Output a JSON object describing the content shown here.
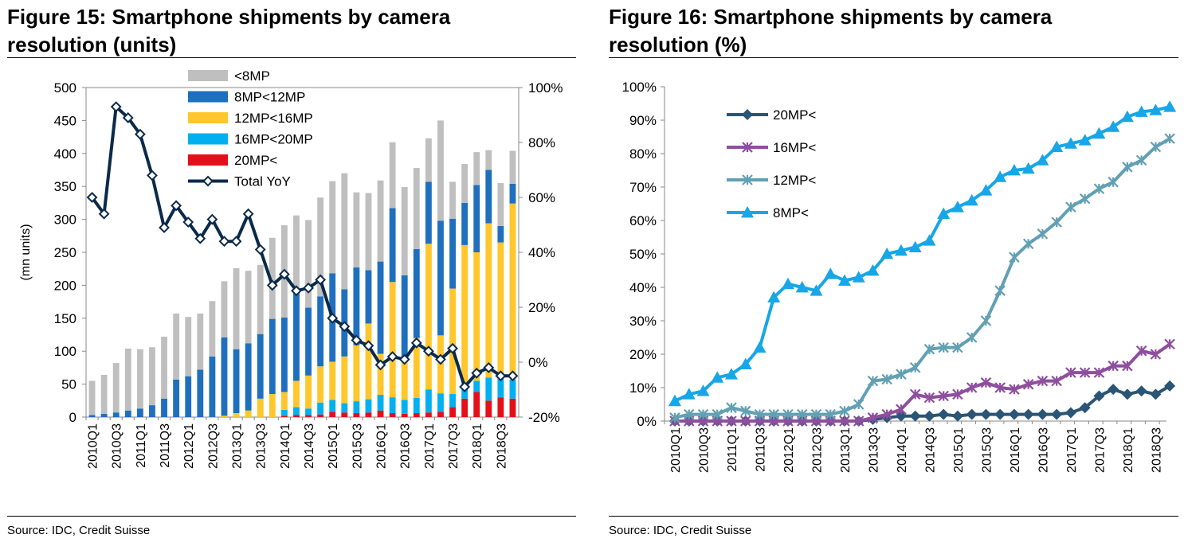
{
  "figures": [
    {
      "title_line1": "Figure 15: Smartphone shipments by camera",
      "title_line2": "resolution (units)",
      "source": "Source: IDC, Credit Suisse"
    },
    {
      "title_line1": "Figure 16: Smartphone shipments by camera",
      "title_line2": "resolution (%)",
      "source": "Source: IDC, Credit Suisse"
    }
  ],
  "colors": {
    "lt8": "#bfbfbf",
    "s8_12": "#1f6fbf",
    "s12_16": "#ffc72c",
    "s16_20": "#00b0f0",
    "gt20": "#e3101a",
    "yoy": "#0b2a4a",
    "c20": "#2b5575",
    "c16": "#8e4f9e",
    "c12": "#62a0b3",
    "c8": "#17a6e8"
  },
  "chart_data": [
    {
      "type": "bar",
      "stacked": true,
      "title": "Figure 15: Smartphone shipments by camera resolution (units)",
      "ylabel": "(mn units)",
      "ylim": [
        0,
        500
      ],
      "yticks": [
        "0",
        "50",
        "100",
        "150",
        "200",
        "250",
        "300",
        "350",
        "400",
        "450",
        "500"
      ],
      "y2lim": [
        -20,
        100
      ],
      "y2ticks": [
        "-20%",
        "0%",
        "20%",
        "40%",
        "60%",
        "80%",
        "100%"
      ],
      "categories": [
        "2010Q1",
        "2010Q2",
        "2010Q3",
        "2010Q4",
        "2011Q1",
        "2011Q2",
        "2011Q3",
        "2011Q4",
        "2012Q1",
        "2012Q2",
        "2012Q3",
        "2012Q4",
        "2013Q1",
        "2013Q2",
        "2013Q3",
        "2013Q4",
        "2014Q1",
        "2014Q2",
        "2014Q3",
        "2014Q4",
        "2015Q1",
        "2015Q2",
        "2015Q3",
        "2015Q4",
        "2016Q1",
        "2016Q2",
        "2016Q3",
        "2016Q4",
        "2017Q1",
        "2017Q2",
        "2017Q3",
        "2017Q4",
        "2018Q1",
        "2018Q2",
        "2018Q3",
        "2018Q4"
      ],
      "x_tick_labels": [
        "2010Q1",
        "2010Q3",
        "2011Q1",
        "2011Q3",
        "2012Q1",
        "2012Q3",
        "2013Q1",
        "2013Q3",
        "2014Q1",
        "2014Q3",
        "2015Q1",
        "2015Q3",
        "2016Q1",
        "2016Q3",
        "2017Q1",
        "2017Q3",
        "2018Q1",
        "2018Q3"
      ],
      "legend_position": "top-center",
      "series": [
        {
          "name": "20MP<",
          "values": [
            0,
            0,
            0,
            0,
            0,
            0,
            0,
            0,
            0,
            0,
            0,
            0,
            0,
            0,
            0,
            0,
            2,
            3,
            3,
            4,
            8,
            7,
            6,
            7,
            10,
            6,
            5,
            6,
            7,
            8,
            15,
            28,
            38,
            25,
            30,
            28
          ]
        },
        {
          "name": "16MP<20MP",
          "values": [
            0,
            0,
            0,
            0,
            0,
            0,
            0,
            0,
            0,
            0,
            0,
            0,
            0,
            0,
            0,
            0,
            9,
            12,
            10,
            18,
            18,
            14,
            18,
            20,
            24,
            24,
            21,
            23,
            35,
            28,
            20,
            22,
            17,
            35,
            37,
            29
          ]
        },
        {
          "name": "12MP<16MP",
          "values": [
            0,
            0,
            0,
            0,
            0,
            0,
            0,
            0,
            0,
            0,
            0,
            2,
            6,
            10,
            28,
            35,
            27,
            40,
            50,
            55,
            58,
            71,
            85,
            115,
            62,
            175,
            64,
            91,
            221,
            88,
            160,
            211,
            195,
            234,
            198,
            267
          ]
        },
        {
          "name": "8MP<12MP",
          "values": [
            3,
            5,
            7,
            10,
            13,
            18,
            28,
            57,
            62,
            72,
            92,
            119,
            97,
            102,
            98,
            114,
            113,
            139,
            103,
            106,
            134,
            102,
            118,
            81,
            140,
            112,
            125,
            135,
            94,
            174,
            106,
            64,
            102,
            81,
            25,
            30
          ]
        },
        {
          "name": "<8MP",
          "values": [
            52,
            59,
            75,
            94,
            90,
            88,
            94,
            100,
            90,
            85,
            84,
            85,
            123,
            110,
            105,
            123,
            140,
            112,
            133,
            150,
            140,
            176,
            114,
            117,
            123,
            100,
            134,
            123,
            66,
            152,
            56,
            59,
            50,
            30,
            65,
            50
          ]
        }
      ],
      "line_series": {
        "name": "Total YoY",
        "axis": "secondary",
        "values": [
          60,
          54,
          93,
          89,
          83,
          68,
          49,
          57,
          51,
          45,
          52,
          44,
          44,
          54,
          41,
          28,
          32,
          26,
          27,
          30,
          16,
          13,
          8,
          6,
          -1,
          2,
          1,
          7,
          4,
          1,
          5,
          -9,
          -4,
          -2,
          -5,
          -5
        ]
      }
    },
    {
      "type": "line",
      "title": "Figure 16: Smartphone shipments by camera resolution (%)",
      "ylim": [
        0,
        100
      ],
      "yticks": [
        "0%",
        "10%",
        "20%",
        "30%",
        "40%",
        "50%",
        "60%",
        "70%",
        "80%",
        "90%",
        "100%"
      ],
      "categories": [
        "2010Q1",
        "2010Q2",
        "2010Q3",
        "2010Q4",
        "2011Q1",
        "2011Q2",
        "2011Q3",
        "2011Q4",
        "2012Q1",
        "2012Q2",
        "2012Q3",
        "2012Q4",
        "2013Q1",
        "2013Q2",
        "2013Q3",
        "2013Q4",
        "2014Q1",
        "2014Q2",
        "2014Q3",
        "2014Q4",
        "2015Q1",
        "2015Q2",
        "2015Q3",
        "2015Q4",
        "2016Q1",
        "2016Q2",
        "2016Q3",
        "2016Q4",
        "2017Q1",
        "2017Q2",
        "2017Q3",
        "2017Q4",
        "2018Q1",
        "2018Q2",
        "2018Q3",
        "2018Q4"
      ],
      "x_tick_labels": [
        "2010Q1",
        "2010Q3",
        "2011Q1",
        "2011Q3",
        "2012Q1",
        "2012Q3",
        "2013Q1",
        "2013Q3",
        "2014Q1",
        "2014Q3",
        "2015Q1",
        "2015Q3",
        "2016Q1",
        "2016Q3",
        "2017Q1",
        "2017Q3",
        "2018Q1",
        "2018Q3"
      ],
      "legend_position": "top-left",
      "series": [
        {
          "name": "20MP<",
          "marker": "diamond",
          "values": [
            0,
            0,
            0,
            0,
            0,
            0,
            0,
            0,
            0,
            0,
            0,
            0,
            0,
            0,
            0.5,
            1,
            1.5,
            1.5,
            1.5,
            2,
            1.5,
            2,
            2,
            2,
            2,
            2,
            2,
            2,
            2.5,
            4,
            7.5,
            9.5,
            8,
            9,
            8,
            10.5
          ]
        },
        {
          "name": "16MP<",
          "marker": "x",
          "values": [
            0,
            0,
            0,
            0,
            0,
            0,
            0,
            0,
            0,
            0,
            0,
            0,
            0,
            0,
            1,
            2,
            3.5,
            8,
            7,
            7.5,
            8,
            10,
            11.5,
            10,
            9.5,
            11,
            12,
            12,
            14.5,
            14.5,
            14.5,
            16.5,
            16.5,
            21,
            20,
            23
          ]
        },
        {
          "name": "12MP<",
          "marker": "x",
          "values": [
            1,
            2,
            2,
            2,
            4,
            3,
            2,
            2,
            2,
            2,
            2,
            2,
            3,
            5,
            12,
            12.5,
            14,
            16,
            21.5,
            22,
            22,
            25,
            30,
            39,
            49,
            53,
            56,
            59.5,
            64,
            66.5,
            69.5,
            71.5,
            76,
            78,
            82,
            84.5
          ]
        },
        {
          "name": "8MP<",
          "marker": "triangle",
          "values": [
            6,
            8,
            9,
            13,
            14,
            17,
            22,
            37,
            41,
            40,
            39,
            44,
            42,
            43,
            45,
            50,
            51,
            52,
            54,
            62,
            64,
            66,
            69,
            73,
            75,
            75.5,
            78,
            82,
            83,
            84,
            86,
            88,
            91,
            92.5,
            93,
            94
          ]
        }
      ]
    }
  ]
}
